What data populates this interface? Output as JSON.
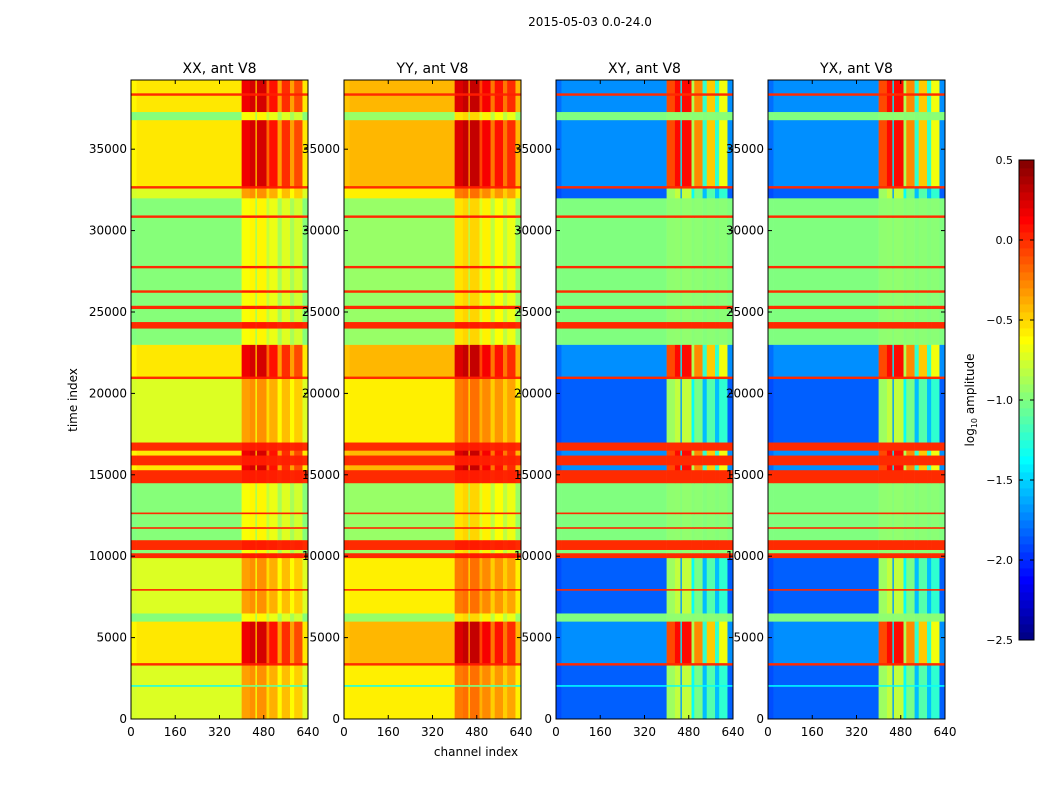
{
  "chart_data": {
    "type": "heatmap",
    "title": "2015-05-03 0.0-24.0",
    "xlabel": "channel index",
    "ylabel": "time index",
    "xlim": [
      0,
      640
    ],
    "ylim": [
      0,
      39250
    ],
    "xticks": [
      0,
      160,
      320,
      480,
      640
    ],
    "yticks": [
      0,
      5000,
      10000,
      15000,
      20000,
      25000,
      30000,
      35000
    ],
    "colorbar": {
      "label_main": "log",
      "label_sub": "10",
      "label_rest": " amplitude",
      "range": [
        -2.5,
        0.5
      ],
      "ticks": [
        "0.5",
        "0.0",
        "−0.5",
        "−1.0",
        "−1.5",
        "−2.0",
        "−2.5"
      ],
      "tick_values": [
        0.5,
        0.0,
        -0.5,
        -1.0,
        -1.5,
        -2.0,
        -2.5
      ],
      "colormap": "jet"
    },
    "channel_columns": [
      {
        "range": [
          0,
          20
        ],
        "weight": 0.0
      },
      {
        "range": [
          20,
          400
        ],
        "weight": 0.05
      },
      {
        "range": [
          400,
          430
        ],
        "weight": 0.9
      },
      {
        "range": [
          430,
          450
        ],
        "weight": 1.0
      },
      {
        "range": [
          450,
          455
        ],
        "weight": 0.2
      },
      {
        "range": [
          455,
          490
        ],
        "weight": 1.0
      },
      {
        "range": [
          490,
          500
        ],
        "weight": 0.5
      },
      {
        "range": [
          500,
          530
        ],
        "weight": 0.8
      },
      {
        "range": [
          530,
          545
        ],
        "weight": 0.3
      },
      {
        "range": [
          545,
          575
        ],
        "weight": 0.7
      },
      {
        "range": [
          575,
          590
        ],
        "weight": 0.3
      },
      {
        "range": [
          590,
          620
        ],
        "weight": 0.6
      },
      {
        "range": [
          620,
          640
        ],
        "weight": 0.05
      }
    ],
    "time_segments": [
      {
        "range": [
          0,
          2000
        ],
        "kind": "normal"
      },
      {
        "range": [
          2000,
          2100
        ],
        "kind": "cyan"
      },
      {
        "range": [
          2100,
          3300
        ],
        "kind": "normal"
      },
      {
        "range": [
          3300,
          3450
        ],
        "kind": "red"
      },
      {
        "range": [
          3450,
          6000
        ],
        "kind": "active"
      },
      {
        "range": [
          6000,
          6500
        ],
        "kind": "green"
      },
      {
        "range": [
          6500,
          7900
        ],
        "kind": "normal"
      },
      {
        "range": [
          7900,
          8000
        ],
        "kind": "red"
      },
      {
        "range": [
          8000,
          9900
        ],
        "kind": "normal"
      },
      {
        "range": [
          9900,
          10200
        ],
        "kind": "red"
      },
      {
        "range": [
          10200,
          10400
        ],
        "kind": "green"
      },
      {
        "range": [
          10400,
          11000
        ],
        "kind": "red"
      },
      {
        "range": [
          11000,
          11700
        ],
        "kind": "green"
      },
      {
        "range": [
          11700,
          11800
        ],
        "kind": "red"
      },
      {
        "range": [
          11800,
          12600
        ],
        "kind": "green"
      },
      {
        "range": [
          12600,
          12700
        ],
        "kind": "red"
      },
      {
        "range": [
          12700,
          14500
        ],
        "kind": "green"
      },
      {
        "range": [
          14500,
          15300
        ],
        "kind": "red"
      },
      {
        "range": [
          15300,
          15600
        ],
        "kind": "active"
      },
      {
        "range": [
          15600,
          16200
        ],
        "kind": "red"
      },
      {
        "range": [
          16200,
          16500
        ],
        "kind": "active"
      },
      {
        "range": [
          16500,
          17000
        ],
        "kind": "red"
      },
      {
        "range": [
          17000,
          20900
        ],
        "kind": "normal"
      },
      {
        "range": [
          20900,
          21050
        ],
        "kind": "red"
      },
      {
        "range": [
          21050,
          23000
        ],
        "kind": "active"
      },
      {
        "range": [
          23000,
          24000
        ],
        "kind": "green"
      },
      {
        "range": [
          24000,
          24400
        ],
        "kind": "red"
      },
      {
        "range": [
          24400,
          25200
        ],
        "kind": "green"
      },
      {
        "range": [
          25200,
          25400
        ],
        "kind": "red"
      },
      {
        "range": [
          25400,
          26200
        ],
        "kind": "green"
      },
      {
        "range": [
          26200,
          26350
        ],
        "kind": "red"
      },
      {
        "range": [
          26350,
          27700
        ],
        "kind": "green"
      },
      {
        "range": [
          27700,
          27850
        ],
        "kind": "red"
      },
      {
        "range": [
          27850,
          30800
        ],
        "kind": "green"
      },
      {
        "range": [
          30800,
          30950
        ],
        "kind": "red"
      },
      {
        "range": [
          30950,
          32000
        ],
        "kind": "green"
      },
      {
        "range": [
          32000,
          32600
        ],
        "kind": "normal"
      },
      {
        "range": [
          32600,
          32750
        ],
        "kind": "red"
      },
      {
        "range": [
          32750,
          36800
        ],
        "kind": "active"
      },
      {
        "range": [
          36800,
          37300
        ],
        "kind": "green"
      },
      {
        "range": [
          37300,
          38300
        ],
        "kind": "active"
      },
      {
        "range": [
          38300,
          38450
        ],
        "kind": "red"
      },
      {
        "range": [
          38450,
          39250
        ],
        "kind": "active"
      }
    ],
    "panels": [
      {
        "title": "XX, ant V8",
        "levels": {
          "normal": [
            -0.75,
            -0.3
          ],
          "active": [
            -0.6,
            0.25
          ],
          "green": [
            -1.0,
            -0.6
          ],
          "red": [
            0.0,
            0.05
          ],
          "cyan": [
            -1.3,
            -1.0
          ]
        }
      },
      {
        "title": "YY, ant V8",
        "levels": {
          "normal": [
            -0.6,
            -0.2
          ],
          "active": [
            -0.45,
            0.3
          ],
          "green": [
            -0.95,
            -0.5
          ],
          "red": [
            0.0,
            0.05
          ],
          "cyan": [
            -1.3,
            -1.0
          ]
        }
      },
      {
        "title": "XY, ant V8",
        "levels": {
          "normal": [
            -1.9,
            -0.8
          ],
          "active": [
            -1.8,
            0.1
          ],
          "green": [
            -1.0,
            -0.95
          ],
          "red": [
            0.0,
            0.0
          ],
          "cyan": [
            -1.4,
            -1.3
          ]
        }
      },
      {
        "title": "YX, ant V8",
        "levels": {
          "normal": [
            -1.9,
            -0.8
          ],
          "active": [
            -1.8,
            0.1
          ],
          "green": [
            -1.0,
            -0.95
          ],
          "red": [
            0.0,
            0.0
          ],
          "cyan": [
            -1.4,
            -1.3
          ]
        }
      }
    ]
  }
}
